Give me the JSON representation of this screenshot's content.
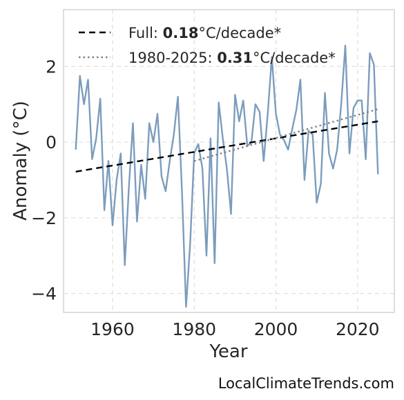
{
  "chart_data": {
    "type": "line",
    "xlabel": "Year",
    "ylabel": "Anomaly (°C)",
    "xlim": [
      1948,
      2029
    ],
    "ylim": [
      -4.5,
      3.5
    ],
    "x_ticks": [
      1960,
      1980,
      2000,
      2020
    ],
    "x_tick_labels": [
      "1960",
      "1980",
      "2000",
      "2020"
    ],
    "y_ticks": [
      -4,
      -2,
      0,
      2
    ],
    "y_tick_labels": [
      "−4",
      "−2",
      "0",
      "2"
    ],
    "grid": true,
    "legend_position": "top-left",
    "series": [
      {
        "color": "#7b9cbd",
        "style": "solid",
        "x": [
          1951,
          1952,
          1953,
          1954,
          1955,
          1956,
          1957,
          1958,
          1959,
          1960,
          1961,
          1962,
          1963,
          1964,
          1965,
          1966,
          1967,
          1968,
          1969,
          1970,
          1971,
          1972,
          1973,
          1974,
          1975,
          1976,
          1977,
          1978,
          1979,
          1980,
          1981,
          1982,
          1983,
          1984,
          1985,
          1986,
          1987,
          1988,
          1989,
          1990,
          1991,
          1992,
          1993,
          1994,
          1995,
          1996,
          1997,
          1998,
          1999,
          2000,
          2001,
          2002,
          2003,
          2004,
          2005,
          2006,
          2007,
          2008,
          2009,
          2010,
          2011,
          2012,
          2013,
          2014,
          2015,
          2016,
          2017,
          2018,
          2019,
          2020,
          2021,
          2022,
          2023,
          2024,
          2025
        ],
        "y": [
          -0.2,
          1.75,
          1.0,
          1.65,
          -0.45,
          0.1,
          1.15,
          -1.8,
          -0.5,
          -2.2,
          -1.0,
          -0.3,
          -3.25,
          -1.2,
          0.5,
          -2.1,
          -0.6,
          -1.5,
          0.5,
          0.0,
          0.75,
          -0.9,
          -1.3,
          -0.5,
          0.2,
          1.2,
          -1.3,
          -4.35,
          -2.7,
          -0.3,
          -0.05,
          -0.7,
          -3.0,
          0.1,
          -3.2,
          1.05,
          0.1,
          -0.7,
          -1.9,
          1.25,
          0.55,
          1.1,
          -0.1,
          0.0,
          1.0,
          0.8,
          -0.5,
          0.75,
          2.25,
          0.75,
          0.2,
          0.05,
          -0.2,
          0.35,
          0.85,
          1.65,
          -1.0,
          0.3,
          0.2,
          -1.6,
          -1.1,
          1.3,
          -0.3,
          -0.7,
          -0.2,
          1.0,
          2.55,
          -0.3,
          0.9,
          1.1,
          1.1,
          -0.45,
          2.35,
          2.05,
          -0.85
        ]
      },
      {
        "name_prefix": "Full: ",
        "name_value": "0.18",
        "name_suffix": "°C/decade*",
        "color": "#000000",
        "style": "dashed",
        "x": [
          1951,
          2025
        ],
        "y": [
          -0.78,
          0.55
        ]
      },
      {
        "name_prefix": "1980-2025: ",
        "name_value": "0.31",
        "name_suffix": "°C/decade*",
        "color": "#808080",
        "style": "dotted",
        "x": [
          1980,
          2025
        ],
        "y": [
          -0.5,
          0.87
        ]
      }
    ]
  },
  "watermark": "LocalClimateTrends.com"
}
